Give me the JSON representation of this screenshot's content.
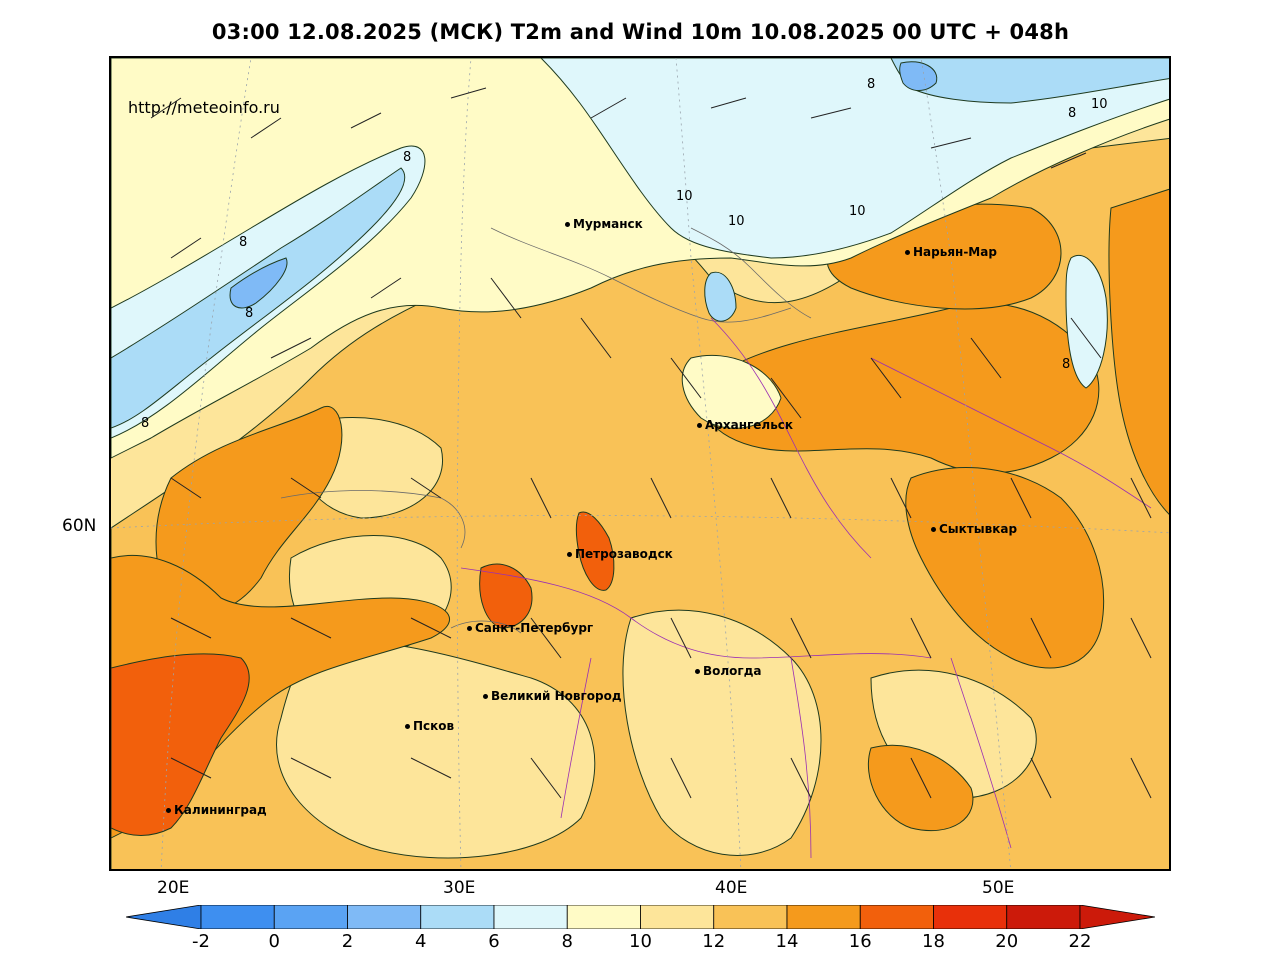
{
  "title": "03:00 12.08.2025 (МСК) T2m and Wind 10m 10.08.2025 00 UTC + 048h",
  "credit": "http://meteoinfo.ru",
  "axes": {
    "lat_label": "60N",
    "lon_labels": [
      "20E",
      "30E",
      "40E",
      "50E"
    ]
  },
  "cities": [
    {
      "name": "Мурманск"
    },
    {
      "name": "Нарьян-Мар"
    },
    {
      "name": "Архангельск"
    },
    {
      "name": "Сыктывкар"
    },
    {
      "name": "Петрозаводск"
    },
    {
      "name": "Санкт-Петербург"
    },
    {
      "name": "Вологда"
    },
    {
      "name": "Великий Новгород"
    },
    {
      "name": "Псков"
    },
    {
      "name": "Калининград"
    }
  ],
  "contour_labels": [
    "8",
    "8",
    "8",
    "8",
    "8",
    "8",
    "10",
    "10",
    "10",
    "10",
    "8"
  ],
  "colorbar": {
    "ticks": [
      "-2",
      "0",
      "2",
      "4",
      "6",
      "8",
      "10",
      "12",
      "14",
      "16",
      "18",
      "20",
      "22"
    ],
    "colors": [
      "#2f7fe6",
      "#3e8ff0",
      "#5aa3f3",
      "#7fbaf6",
      "#abdcf7",
      "#dff7fb",
      "#fffbc6",
      "#fde59a",
      "#f9c257",
      "#f59a1c",
      "#f2600c",
      "#e8300a",
      "#cc1a0a"
    ]
  },
  "map_colors": {
    "temp_12_14": "#fde59a",
    "temp_10_12": "#fffbc6",
    "temp_8_10": "#dff7fb",
    "temp_6_8": "#abdcf7",
    "temp_4_6": "#7fbaf6",
    "temp_14_16": "#f9c257",
    "temp_16_18": "#f59a1c",
    "temp_18_20": "#f2600c"
  }
}
